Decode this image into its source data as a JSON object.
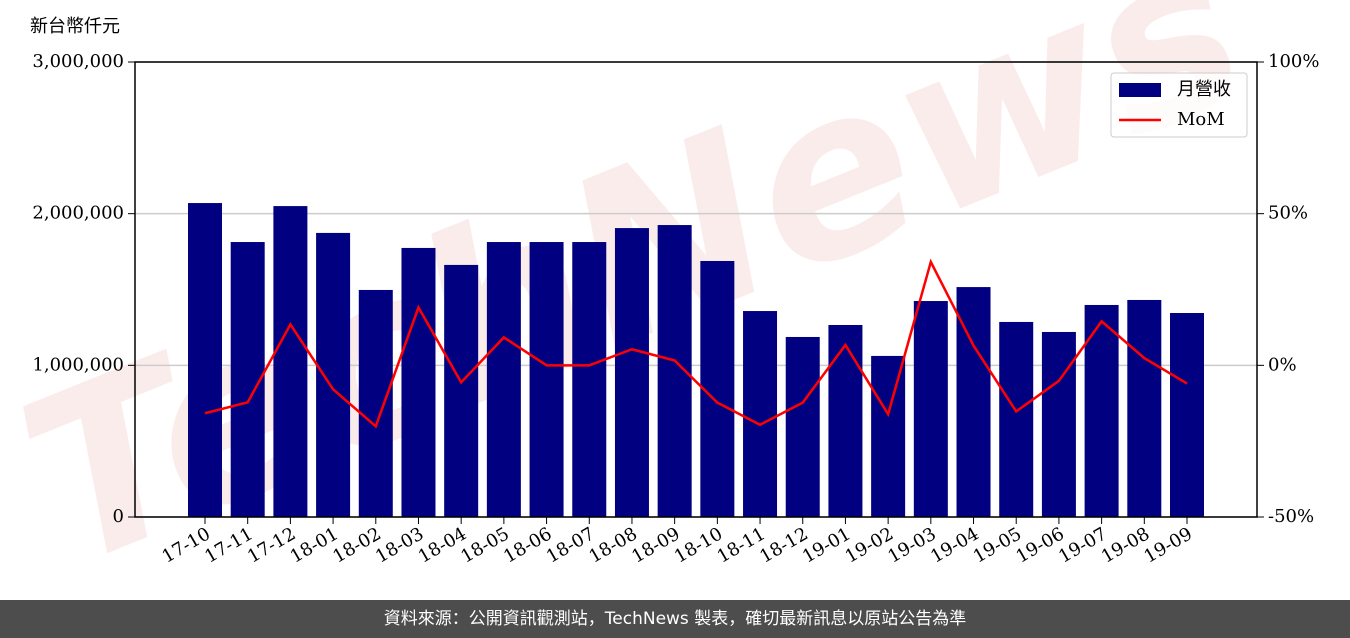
{
  "chart_data": {
    "type": "bar",
    "y_label": "新台幣仟元",
    "watermark": "TechNews",
    "categories": [
      "17-10",
      "17-11",
      "17-12",
      "18-01",
      "18-02",
      "18-03",
      "18-04",
      "18-05",
      "18-06",
      "18-07",
      "18-08",
      "18-09",
      "18-10",
      "18-11",
      "18-12",
      "19-01",
      "19-02",
      "19-03",
      "19-04",
      "19-05",
      "19-06",
      "19-07",
      "19-08",
      "19-09"
    ],
    "series": [
      {
        "name": "月營收",
        "type": "bar",
        "color": "#000080",
        "values": [
          2070000,
          1813000,
          2050000,
          1873000,
          1497000,
          1774000,
          1662000,
          1813000,
          1813000,
          1813000,
          1905000,
          1925000,
          1688000,
          1358000,
          1187000,
          1266000,
          1062000,
          1424000,
          1516000,
          1286000,
          1220000,
          1398000,
          1431000,
          1345000
        ]
      },
      {
        "name": "MoM",
        "type": "line",
        "axis": "y2",
        "color": "#ff0000",
        "values": [
          -15.8,
          -12.2,
          13.5,
          -7.9,
          -20.1,
          19.1,
          -5.6,
          9.2,
          0,
          0,
          5.3,
          1.6,
          -12.3,
          -19.6,
          -12.3,
          6.7,
          -16.1,
          34.1,
          6.5,
          -15.2,
          -5.1,
          14.5,
          2.4,
          -6.0
        ]
      }
    ],
    "ylim": [
      0,
      3000000
    ],
    "yticks": [
      0,
      {
        "value": 1000000,
        "label": "1,000,000"
      },
      {
        "value": 2000000,
        "label": "2,000,000"
      },
      {
        "value": 3000000,
        "label": "3,000,000"
      }
    ],
    "y2lim": [
      -50,
      100
    ],
    "y2ticks": [
      {
        "value": -50,
        "label": "-50%"
      },
      {
        "value": 0,
        "label": "0%"
      },
      {
        "value": 50,
        "label": "50%"
      },
      {
        "value": 100,
        "label": "100%"
      }
    ],
    "grid": true,
    "legend": "upper right",
    "footer": "資料來源：公開資訊觀測站，TechNews 製表，確切最新訊息以原站公告為準"
  }
}
